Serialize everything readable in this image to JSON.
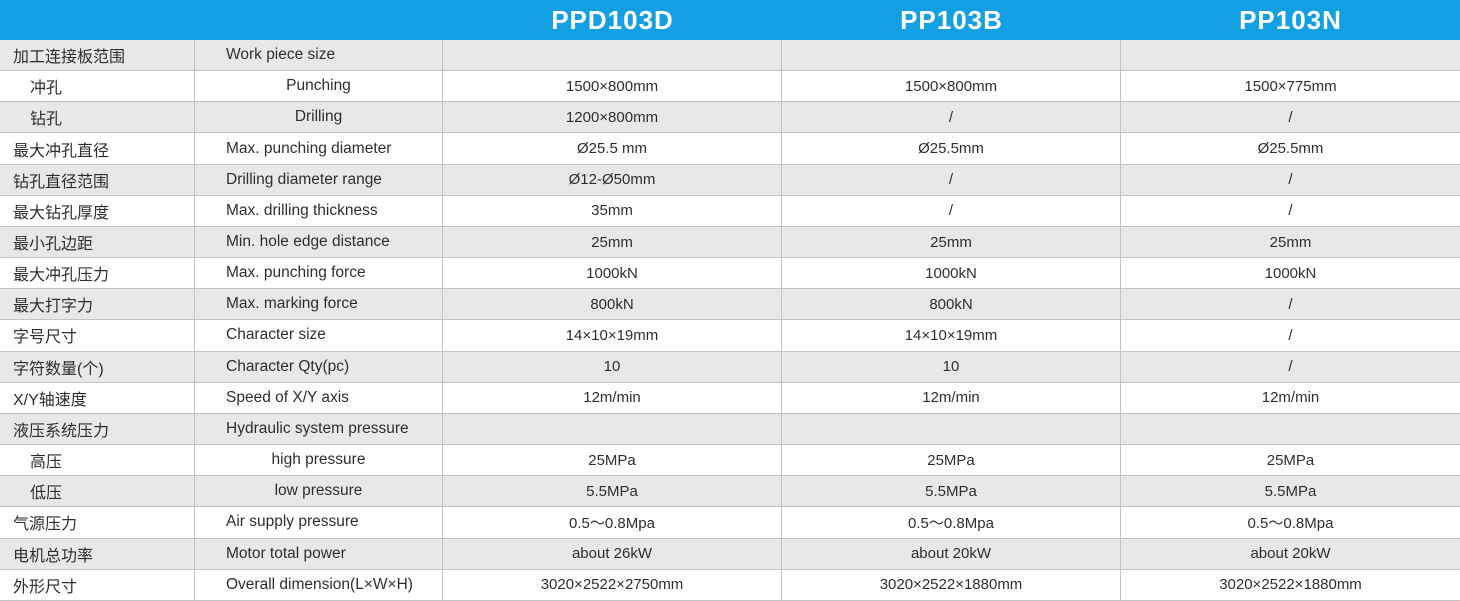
{
  "colors": {
    "header_bg": "#12A0E3",
    "header_text": "#FFFFFF",
    "row_alt_bg": "#E8E8E8",
    "row_bg": "#FFFFFF",
    "border": "#C3C3C3",
    "text": "#2E2E2E"
  },
  "table": {
    "products": [
      "PPD103D",
      "PP103B",
      "PP103N"
    ],
    "rows": [
      {
        "cn": "加工连接板范围",
        "en": "Work piece size",
        "values": [
          "",
          "",
          ""
        ],
        "sub": false
      },
      {
        "cn": "冲孔",
        "en": "Punching",
        "values": [
          "1500×800mm",
          "1500×800mm",
          "1500×775mm"
        ],
        "sub": true
      },
      {
        "cn": "钻孔",
        "en": "Drilling",
        "values": [
          "1200×800mm",
          "/",
          "/"
        ],
        "sub": true
      },
      {
        "cn": "最大冲孔直径",
        "en": "Max. punching diameter",
        "values": [
          "Ø25.5 mm",
          "Ø25.5mm",
          "Ø25.5mm"
        ],
        "sub": false
      },
      {
        "cn": "钻孔直径范围",
        "en": "Drilling diameter range",
        "values": [
          "Ø12-Ø50mm",
          "/",
          "/"
        ],
        "sub": false
      },
      {
        "cn": "最大钻孔厚度",
        "en": "Max. drilling thickness",
        "values": [
          "35mm",
          "/",
          "/"
        ],
        "sub": false
      },
      {
        "cn": "最小孔边距",
        "en": "Min. hole edge distance",
        "values": [
          "25mm",
          "25mm",
          "25mm"
        ],
        "sub": false
      },
      {
        "cn": "最大冲孔压力",
        "en": "Max. punching force",
        "values": [
          "1000kN",
          "1000kN",
          "1000kN"
        ],
        "sub": false
      },
      {
        "cn": "最大打字力",
        "en": "Max. marking force",
        "values": [
          "800kN",
          "800kN",
          "/"
        ],
        "sub": false
      },
      {
        "cn": "字号尺寸",
        "en": "Character size",
        "values": [
          "14×10×19mm",
          "14×10×19mm",
          "/"
        ],
        "sub": false
      },
      {
        "cn": "字符数量(个)",
        "en": "Character Qty(pc)",
        "values": [
          "10",
          "10",
          "/"
        ],
        "sub": false
      },
      {
        "cn": "X/Y轴速度",
        "en": "Speed of X/Y axis",
        "values": [
          "12m/min",
          "12m/min",
          "12m/min"
        ],
        "sub": false
      },
      {
        "cn": "液压系统压力",
        "en": "Hydraulic system pressure",
        "values": [
          "",
          "",
          ""
        ],
        "sub": false
      },
      {
        "cn": "高压",
        "en": "high pressure",
        "values": [
          "25MPa",
          "25MPa",
          "25MPa"
        ],
        "sub": true
      },
      {
        "cn": "低压",
        "en": "low pressure",
        "values": [
          "5.5MPa",
          "5.5MPa",
          "5.5MPa"
        ],
        "sub": true
      },
      {
        "cn": "气源压力",
        "en": "Air supply pressure",
        "values": [
          "0.5～0.8Mpa",
          "0.5～0.8Mpa",
          "0.5～0.8Mpa"
        ],
        "sub": false
      },
      {
        "cn": "电机总功率",
        "en": "Motor total power",
        "values": [
          "about 26kW",
          "about 20kW",
          "about 20kW"
        ],
        "sub": false
      },
      {
        "cn": "外形尺寸",
        "en": "Overall dimension(L×W×H)",
        "values": [
          "3020×2522×2750mm",
          "3020×2522×1880mm",
          "3020×2522×1880mm"
        ],
        "sub": false
      }
    ]
  }
}
